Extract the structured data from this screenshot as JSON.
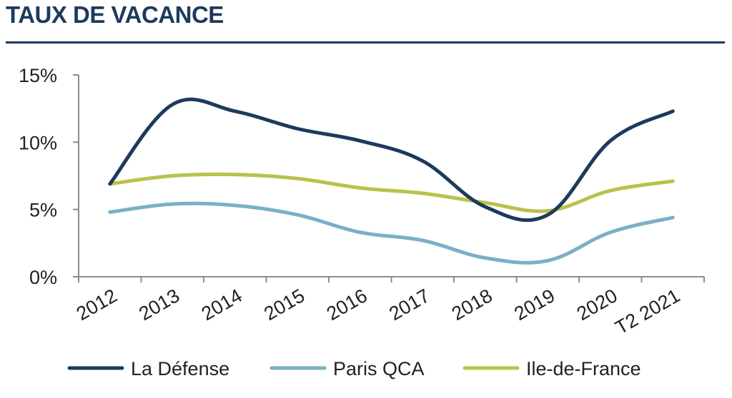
{
  "chart_data": {
    "type": "line",
    "title": "TAUX DE VACANCE",
    "categories": [
      "2012",
      "2013",
      "2014",
      "2015",
      "2016",
      "2017",
      "2018",
      "2019",
      "2020",
      "T2 2021"
    ],
    "y_tick_labels": [
      "0%",
      "5%",
      "10%",
      "15%"
    ],
    "y_ticks": [
      0,
      5,
      10,
      15
    ],
    "ylim": [
      0,
      15
    ],
    "grid": false,
    "legend_position": "bottom",
    "series": [
      {
        "name": "La Défense",
        "color": "#1d3a5c",
        "values": [
          6.9,
          12.8,
          12.3,
          11.0,
          10.1,
          8.6,
          5.2,
          4.6,
          10.1,
          12.3
        ]
      },
      {
        "name": "Paris QCA",
        "color": "#7bafc7",
        "values": [
          4.8,
          5.4,
          5.3,
          4.6,
          3.3,
          2.7,
          1.4,
          1.2,
          3.3,
          4.4
        ]
      },
      {
        "name": "Ile-de-France",
        "color": "#b9c24a",
        "values": [
          6.9,
          7.5,
          7.6,
          7.3,
          6.6,
          6.2,
          5.5,
          4.9,
          6.4,
          7.1
        ]
      }
    ]
  }
}
